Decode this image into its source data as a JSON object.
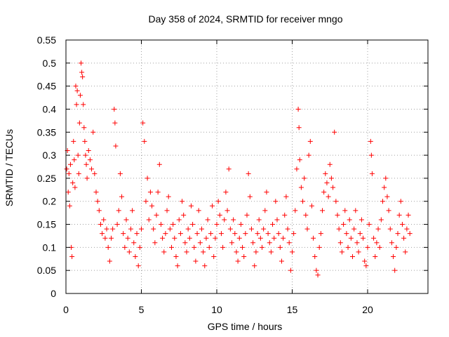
{
  "chart_data": {
    "type": "scatter",
    "title": "Day 358 of 2024, SRMTID for receiver mngo",
    "xlabel": "GPS time / hours",
    "ylabel": "SRMTID / TECUs",
    "xlim": [
      0,
      24
    ],
    "ylim": [
      0,
      0.55
    ],
    "xticks": [
      0,
      5,
      10,
      15,
      20
    ],
    "yticks": [
      0,
      0.05,
      0.1,
      0.15,
      0.2,
      0.25,
      0.3,
      0.35,
      0.4,
      0.45,
      0.5,
      0.55
    ],
    "xtick_labels": [
      "0",
      "5",
      "10",
      "15",
      "20"
    ],
    "ytick_labels": [
      "0",
      "0.05",
      "0.1",
      "0.15",
      "0.2",
      "0.25",
      "0.3",
      "0.35",
      "0.4",
      "0.45",
      "0.5",
      "0.55"
    ],
    "grid": true,
    "marker": "+",
    "marker_color": "#ff0000",
    "series": [
      {
        "name": "SRMTID",
        "points": [
          [
            0.05,
            0.27
          ],
          [
            0.1,
            0.31
          ],
          [
            0.15,
            0.22
          ],
          [
            0.2,
            0.26
          ],
          [
            0.25,
            0.19
          ],
          [
            0.3,
            0.28
          ],
          [
            0.35,
            0.1
          ],
          [
            0.4,
            0.08
          ],
          [
            0.45,
            0.24
          ],
          [
            0.5,
            0.33
          ],
          [
            0.55,
            0.29
          ],
          [
            0.6,
            0.23
          ],
          [
            0.65,
            0.45
          ],
          [
            0.7,
            0.41
          ],
          [
            0.75,
            0.44
          ],
          [
            0.8,
            0.3
          ],
          [
            0.85,
            0.26
          ],
          [
            0.9,
            0.37
          ],
          [
            0.95,
            0.43
          ],
          [
            1.0,
            0.5
          ],
          [
            1.05,
            0.48
          ],
          [
            1.1,
            0.47
          ],
          [
            1.15,
            0.41
          ],
          [
            1.2,
            0.36
          ],
          [
            1.25,
            0.33
          ],
          [
            1.3,
            0.3
          ],
          [
            1.35,
            0.28
          ],
          [
            1.4,
            0.25
          ],
          [
            1.5,
            0.31
          ],
          [
            1.6,
            0.29
          ],
          [
            1.7,
            0.27
          ],
          [
            1.8,
            0.35
          ],
          [
            1.9,
            0.26
          ],
          [
            2.0,
            0.22
          ],
          [
            2.1,
            0.2
          ],
          [
            2.2,
            0.18
          ],
          [
            2.3,
            0.15
          ],
          [
            2.4,
            0.13
          ],
          [
            2.5,
            0.16
          ],
          [
            2.6,
            0.12
          ],
          [
            2.7,
            0.14
          ],
          [
            2.8,
            0.1
          ],
          [
            2.9,
            0.07
          ],
          [
            3.0,
            0.12
          ],
          [
            3.1,
            0.14
          ],
          [
            3.2,
            0.4
          ],
          [
            3.25,
            0.37
          ],
          [
            3.3,
            0.32
          ],
          [
            3.4,
            0.15
          ],
          [
            3.5,
            0.18
          ],
          [
            3.6,
            0.26
          ],
          [
            3.7,
            0.21
          ],
          [
            3.8,
            0.13
          ],
          [
            3.9,
            0.1
          ],
          [
            4.0,
            0.16
          ],
          [
            4.1,
            0.12
          ],
          [
            4.2,
            0.09
          ],
          [
            4.3,
            0.14
          ],
          [
            4.4,
            0.18
          ],
          [
            4.5,
            0.11
          ],
          [
            4.6,
            0.08
          ],
          [
            4.7,
            0.13
          ],
          [
            4.8,
            0.06
          ],
          [
            4.9,
            0.1
          ],
          [
            5.0,
            0.14
          ],
          [
            5.1,
            0.37
          ],
          [
            5.2,
            0.33
          ],
          [
            5.3,
            0.2
          ],
          [
            5.4,
            0.25
          ],
          [
            5.5,
            0.16
          ],
          [
            5.6,
            0.22
          ],
          [
            5.7,
            0.19
          ],
          [
            5.8,
            0.14
          ],
          [
            5.9,
            0.11
          ],
          [
            6.0,
            0.17
          ],
          [
            6.1,
            0.22
          ],
          [
            6.2,
            0.28
          ],
          [
            6.3,
            0.15
          ],
          [
            6.4,
            0.12
          ],
          [
            6.5,
            0.09
          ],
          [
            6.6,
            0.13
          ],
          [
            6.7,
            0.18
          ],
          [
            6.8,
            0.21
          ],
          [
            6.9,
            0.14
          ],
          [
            7.0,
            0.1
          ],
          [
            7.1,
            0.15
          ],
          [
            7.2,
            0.12
          ],
          [
            7.3,
            0.08
          ],
          [
            7.4,
            0.06
          ],
          [
            7.5,
            0.16
          ],
          [
            7.6,
            0.13
          ],
          [
            7.7,
            0.2
          ],
          [
            7.8,
            0.17
          ],
          [
            7.9,
            0.11
          ],
          [
            8.0,
            0.09
          ],
          [
            8.1,
            0.14
          ],
          [
            8.2,
            0.12
          ],
          [
            8.3,
            0.19
          ],
          [
            8.4,
            0.15
          ],
          [
            8.5,
            0.1
          ],
          [
            8.6,
            0.07
          ],
          [
            8.7,
            0.13
          ],
          [
            8.8,
            0.18
          ],
          [
            8.9,
            0.11
          ],
          [
            9.0,
            0.14
          ],
          [
            9.1,
            0.09
          ],
          [
            9.2,
            0.06
          ],
          [
            9.3,
            0.12
          ],
          [
            9.4,
            0.16
          ],
          [
            9.5,
            0.1
          ],
          [
            9.6,
            0.13
          ],
          [
            9.7,
            0.19
          ],
          [
            9.8,
            0.08
          ],
          [
            9.9,
            0.12
          ],
          [
            10.0,
            0.15
          ],
          [
            10.1,
            0.2
          ],
          [
            10.2,
            0.17
          ],
          [
            10.3,
            0.13
          ],
          [
            10.4,
            0.1
          ],
          [
            10.5,
            0.16
          ],
          [
            10.6,
            0.22
          ],
          [
            10.7,
            0.18
          ],
          [
            10.8,
            0.27
          ],
          [
            10.9,
            0.14
          ],
          [
            11.0,
            0.11
          ],
          [
            11.1,
            0.16
          ],
          [
            11.2,
            0.13
          ],
          [
            11.3,
            0.09
          ],
          [
            11.4,
            0.07
          ],
          [
            11.5,
            0.12
          ],
          [
            11.6,
            0.15
          ],
          [
            11.7,
            0.1
          ],
          [
            11.8,
            0.08
          ],
          [
            11.9,
            0.13
          ],
          [
            12.0,
            0.17
          ],
          [
            12.1,
            0.26
          ],
          [
            12.2,
            0.21
          ],
          [
            12.3,
            0.14
          ],
          [
            12.4,
            0.11
          ],
          [
            12.5,
            0.06
          ],
          [
            12.6,
            0.09
          ],
          [
            12.7,
            0.13
          ],
          [
            12.8,
            0.16
          ],
          [
            12.9,
            0.12
          ],
          [
            13.0,
            0.1
          ],
          [
            13.1,
            0.14
          ],
          [
            13.2,
            0.18
          ],
          [
            13.3,
            0.22
          ],
          [
            13.4,
            0.13
          ],
          [
            13.5,
            0.11
          ],
          [
            13.6,
            0.09
          ],
          [
            13.7,
            0.15
          ],
          [
            13.8,
            0.12
          ],
          [
            13.9,
            0.2
          ],
          [
            14.0,
            0.16
          ],
          [
            14.1,
            0.13
          ],
          [
            14.2,
            0.1
          ],
          [
            14.3,
            0.07
          ],
          [
            14.4,
            0.12
          ],
          [
            14.5,
            0.17
          ],
          [
            14.6,
            0.21
          ],
          [
            14.7,
            0.14
          ],
          [
            14.8,
            0.11
          ],
          [
            14.9,
            0.05
          ],
          [
            15.0,
            0.09
          ],
          [
            15.1,
            0.13
          ],
          [
            15.2,
            0.18
          ],
          [
            15.3,
            0.27
          ],
          [
            15.4,
            0.4
          ],
          [
            15.45,
            0.36
          ],
          [
            15.5,
            0.29
          ],
          [
            15.6,
            0.23
          ],
          [
            15.7,
            0.2
          ],
          [
            15.8,
            0.25
          ],
          [
            15.9,
            0.17
          ],
          [
            16.0,
            0.14
          ],
          [
            16.1,
            0.3
          ],
          [
            16.2,
            0.33
          ],
          [
            16.3,
            0.19
          ],
          [
            16.4,
            0.12
          ],
          [
            16.5,
            0.08
          ],
          [
            16.6,
            0.05
          ],
          [
            16.7,
            0.04
          ],
          [
            16.8,
            0.1
          ],
          [
            16.9,
            0.13
          ],
          [
            17.0,
            0.18
          ],
          [
            17.1,
            0.22
          ],
          [
            17.2,
            0.26
          ],
          [
            17.3,
            0.24
          ],
          [
            17.4,
            0.21
          ],
          [
            17.5,
            0.28
          ],
          [
            17.6,
            0.25
          ],
          [
            17.7,
            0.23
          ],
          [
            17.8,
            0.35
          ],
          [
            17.9,
            0.2
          ],
          [
            18.0,
            0.17
          ],
          [
            18.1,
            0.14
          ],
          [
            18.2,
            0.11
          ],
          [
            18.3,
            0.09
          ],
          [
            18.4,
            0.15
          ],
          [
            18.5,
            0.18
          ],
          [
            18.6,
            0.13
          ],
          [
            18.7,
            0.1
          ],
          [
            18.8,
            0.16
          ],
          [
            18.9,
            0.12
          ],
          [
            19.0,
            0.08
          ],
          [
            19.1,
            0.14
          ],
          [
            19.2,
            0.18
          ],
          [
            19.3,
            0.11
          ],
          [
            19.4,
            0.09
          ],
          [
            19.5,
            0.13
          ],
          [
            19.6,
            0.16
          ],
          [
            19.7,
            0.12
          ],
          [
            19.8,
            0.07
          ],
          [
            19.9,
            0.06
          ],
          [
            20.0,
            0.1
          ],
          [
            20.1,
            0.15
          ],
          [
            20.2,
            0.33
          ],
          [
            20.25,
            0.3
          ],
          [
            20.3,
            0.26
          ],
          [
            20.4,
            0.12
          ],
          [
            20.5,
            0.08
          ],
          [
            20.6,
            0.11
          ],
          [
            20.7,
            0.14
          ],
          [
            20.8,
            0.1
          ],
          [
            20.9,
            0.16
          ],
          [
            21.0,
            0.2
          ],
          [
            21.1,
            0.23
          ],
          [
            21.2,
            0.25
          ],
          [
            21.3,
            0.21
          ],
          [
            21.4,
            0.18
          ],
          [
            21.5,
            0.14
          ],
          [
            21.6,
            0.11
          ],
          [
            21.7,
            0.08
          ],
          [
            21.8,
            0.05
          ],
          [
            21.9,
            0.1
          ],
          [
            22.0,
            0.13
          ],
          [
            22.1,
            0.17
          ],
          [
            22.2,
            0.2
          ],
          [
            22.3,
            0.15
          ],
          [
            22.4,
            0.12
          ],
          [
            22.5,
            0.09
          ],
          [
            22.6,
            0.14
          ],
          [
            22.7,
            0.17
          ],
          [
            22.8,
            0.13
          ]
        ]
      }
    ]
  }
}
